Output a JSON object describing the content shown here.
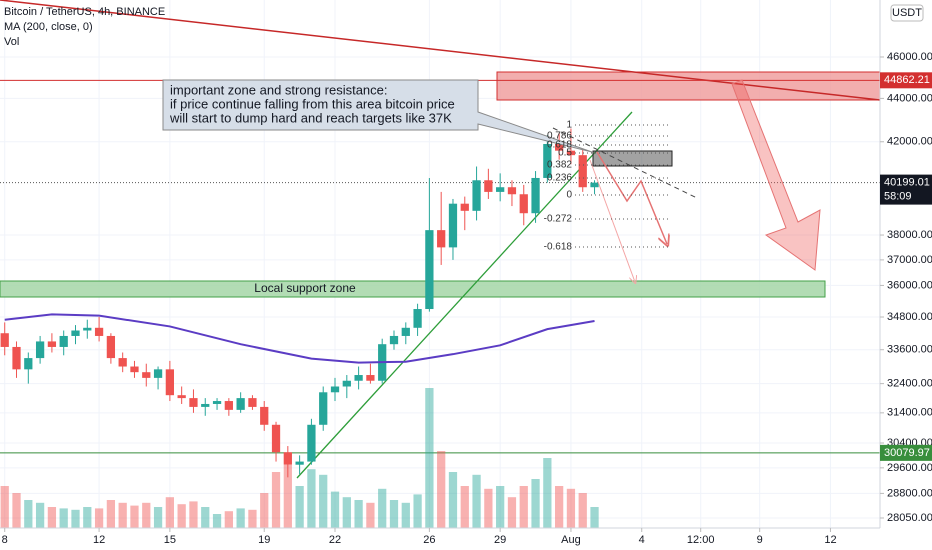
{
  "chart_data": {
    "type": "candlestick",
    "title": "Bitcoin / TetherUS, 4h, BINANCE",
    "indicator": "MA (200, close, 0)",
    "volume_label": "Vol",
    "currency": "USDT",
    "log": true,
    "grid": true,
    "up_color": "#26a69a",
    "down_color": "#ef5350",
    "xlim": [
      7.8,
      45.1
    ],
    "ylim": [
      27750,
      48900
    ],
    "xticks": [
      8,
      12,
      15,
      19,
      22,
      26,
      29,
      {
        "value": 32,
        "label": "Aug"
      },
      {
        "value": 35,
        "label": "4"
      },
      {
        "value": 37.5,
        "label": "12:00"
      },
      {
        "value": 40,
        "label": "9"
      },
      {
        "value": 43,
        "label": "12"
      }
    ],
    "yticks": [
      {
        "value": 46000,
        "label": "46000.00"
      },
      {
        "value": 44000,
        "label": "44000.00"
      },
      {
        "value": 42000,
        "label": "42000.00"
      },
      {
        "value": 38000,
        "label": "38000.00"
      },
      {
        "value": 37000,
        "label": "37000.00"
      },
      {
        "value": 36000,
        "label": "36000.00"
      },
      {
        "value": 34800,
        "label": "34800.00"
      },
      {
        "value": 33600,
        "label": "33600.00"
      },
      {
        "value": 32400,
        "label": "32400.00"
      },
      {
        "value": 31400,
        "label": "31400.00"
      },
      {
        "value": 30400,
        "label": "30400.00"
      },
      {
        "value": 29600,
        "label": "29600.00"
      },
      {
        "value": 28800,
        "label": "28800.00"
      },
      {
        "value": 28050,
        "label": "28050.00"
      }
    ],
    "x": [
      8,
      8.5,
      9,
      9.5,
      10,
      10.5,
      11,
      11.5,
      12,
      12.5,
      13,
      13.5,
      14,
      14.5,
      15,
      15.5,
      16,
      16.5,
      17,
      17.5,
      18,
      18.5,
      19,
      19.5,
      20,
      20.5,
      21,
      21.5,
      22,
      22.5,
      23,
      23.5,
      24,
      24.5,
      25,
      25.5,
      26,
      26.5,
      27,
      27.5,
      28,
      28.5,
      29,
      29.5,
      30,
      30.5,
      31,
      31.5,
      32,
      32.5,
      33
    ],
    "open": [
      34200,
      33700,
      32900,
      33300,
      33900,
      33700,
      34100,
      34300,
      34400,
      34100,
      33300,
      33000,
      32800,
      32600,
      32900,
      32000,
      31900,
      31600,
      31700,
      31800,
      31500,
      31900,
      31600,
      31000,
      30100,
      29700,
      29800,
      31000,
      32100,
      32300,
      32500,
      32700,
      32500,
      33800,
      34100,
      34400,
      35100,
      38200,
      37500,
      39300,
      39000,
      40300,
      39800,
      40000,
      39700,
      38900,
      40400,
      41900,
      41600,
      41400,
      40000
    ],
    "high": [
      34600,
      33900,
      33500,
      34100,
      34200,
      34300,
      34500,
      34700,
      34800,
      34200,
      33500,
      33200,
      33100,
      33000,
      33200,
      32300,
      32200,
      31900,
      31900,
      31900,
      32100,
      32000,
      31800,
      31100,
      30300,
      30000,
      31200,
      32300,
      32600,
      32700,
      33000,
      33100,
      34000,
      34300,
      34600,
      35300,
      40400,
      39800,
      39500,
      39600,
      40900,
      40800,
      40600,
      40300,
      40100,
      40700,
      42300,
      42400,
      42600,
      41700,
      40300
    ],
    "low": [
      33400,
      32600,
      32400,
      33100,
      33500,
      33400,
      33800,
      34000,
      33900,
      33100,
      32800,
      32600,
      32300,
      32200,
      31800,
      31700,
      31400,
      31300,
      31500,
      31300,
      31400,
      31500,
      30800,
      29800,
      29300,
      29400,
      29700,
      30800,
      31800,
      31900,
      32200,
      32400,
      32400,
      33600,
      33800,
      34100,
      35000,
      36800,
      37000,
      38200,
      38600,
      39500,
      39400,
      39200,
      38400,
      38500,
      40200,
      41200,
      41000,
      39800,
      39700
    ],
    "close": [
      33700,
      32900,
      33300,
      33900,
      33700,
      34100,
      34300,
      34400,
      34100,
      33300,
      33000,
      32800,
      32600,
      32900,
      32000,
      31900,
      31600,
      31700,
      31800,
      31500,
      31900,
      31600,
      31000,
      30100,
      29700,
      29800,
      31000,
      32100,
      32300,
      32500,
      32700,
      32500,
      33800,
      34100,
      34400,
      35100,
      38200,
      37500,
      39300,
      39000,
      40300,
      39800,
      40000,
      39700,
      38900,
      40400,
      41900,
      41600,
      41400,
      40000,
      40199.01
    ],
    "volume": [
      30,
      25,
      20,
      18,
      15,
      14,
      13,
      15,
      14,
      20,
      18,
      16,
      18,
      15,
      22,
      17,
      19,
      15,
      10,
      12,
      14,
      13,
      25,
      40,
      45,
      30,
      42,
      38,
      26,
      22,
      20,
      18,
      28,
      20,
      18,
      24,
      100,
      55,
      40,
      30,
      38,
      28,
      30,
      22,
      30,
      35,
      50,
      30,
      28,
      25,
      15
    ],
    "ma": {
      "color": "#5b3cc4",
      "x": [
        8,
        10,
        12,
        15,
        18,
        21,
        23,
        25,
        27,
        29,
        31,
        33
      ],
      "values": [
        34700,
        34900,
        34850,
        34450,
        33800,
        33280,
        33140,
        33170,
        33440,
        33760,
        34350,
        34650
      ]
    },
    "price_lines": [
      {
        "value": 44862.21,
        "color": "#d32f2f"
      },
      {
        "value": 30079.97,
        "color": "#388e3c"
      }
    ],
    "last_price": {
      "value": 40199.01,
      "countdown": "58:09"
    },
    "support_label": "Local support zone",
    "annotation": [
      "important zone and strong resistance:",
      "if price continue falling from this area bitcoin price",
      "will start to dump hard and reach targets like 37K"
    ],
    "fib_labels": [
      "1",
      "0.786",
      "0.618",
      "0.5",
      "0.382",
      "0.236",
      "0",
      "-0.272",
      "-0.618"
    ]
  }
}
